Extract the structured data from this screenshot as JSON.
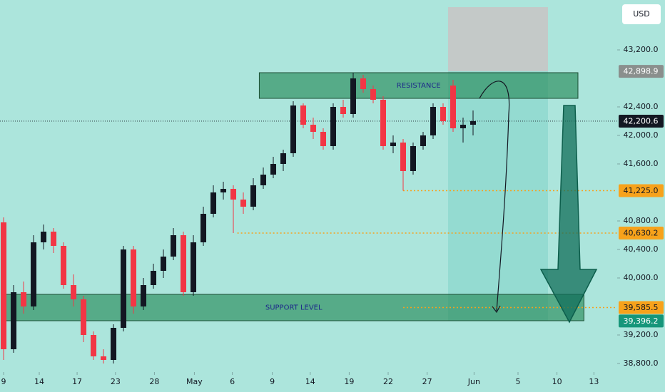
{
  "chart_data": {
    "type": "candlestick",
    "currency": "USD",
    "x": [
      0,
      1,
      2,
      3,
      4,
      5,
      6,
      7,
      8,
      9,
      10,
      11,
      12,
      13,
      14,
      15,
      16,
      17,
      18,
      19,
      20,
      21,
      22,
      23,
      24,
      25,
      26,
      27,
      28,
      29,
      30,
      31,
      32,
      33,
      34,
      35,
      36,
      37,
      38,
      39,
      40,
      41,
      42,
      43,
      44,
      45,
      46,
      47
    ],
    "open": [
      40780,
      39000,
      39800,
      39600,
      40500,
      40650,
      40450,
      39900,
      39700,
      39200,
      38900,
      38850,
      39300,
      40400,
      39600,
      39900,
      40100,
      40300,
      40600,
      39800,
      40500,
      40900,
      41200,
      41250,
      41100,
      41000,
      41300,
      41450,
      41600,
      41750,
      42420,
      42150,
      42050,
      41850,
      42400,
      42300,
      42800,
      42650,
      42500,
      41850,
      41900,
      41500,
      41850,
      42000,
      42400,
      42700,
      42100,
      42150
    ],
    "high": [
      40850,
      39900,
      39950,
      40600,
      40750,
      40700,
      40500,
      40050,
      39750,
      39250,
      39000,
      39350,
      40450,
      40450,
      40000,
      40200,
      40400,
      40700,
      40650,
      40600,
      41000,
      41300,
      41350,
      41300,
      41200,
      41400,
      41550,
      41700,
      41800,
      42480,
      42450,
      42250,
      42100,
      42450,
      42500,
      42880,
      42850,
      42700,
      42550,
      42000,
      41950,
      41900,
      42050,
      42450,
      42450,
      42780,
      42250,
      42350
    ],
    "low": [
      38850,
      38950,
      39500,
      39550,
      40400,
      40350,
      39850,
      39600,
      39100,
      38850,
      38800,
      38800,
      39250,
      39500,
      39550,
      39850,
      40000,
      40250,
      39750,
      39750,
      40450,
      40850,
      41100,
      40630.2,
      40900,
      40950,
      41250,
      41400,
      41500,
      41700,
      42100,
      41950,
      41800,
      41800,
      42250,
      42250,
      42600,
      42450,
      41800,
      41750,
      41225,
      41450,
      41800,
      41950,
      42150,
      42050,
      41900,
      42000
    ],
    "close": [
      39000,
      39800,
      39600,
      40500,
      40650,
      40450,
      39900,
      39700,
      39200,
      38900,
      38850,
      39300,
      40400,
      39600,
      39900,
      40100,
      40300,
      40600,
      39800,
      40500,
      40900,
      41200,
      41250,
      41100,
      41000,
      41300,
      41450,
      41600,
      41750,
      42420,
      42150,
      42050,
      41850,
      42400,
      42300,
      42800,
      42650,
      42500,
      41850,
      41900,
      41500,
      41850,
      42000,
      42400,
      42200,
      42100,
      42150,
      42200.6
    ],
    "up_color": "#131722",
    "down_color": "#f23645",
    "xlim": [
      -0.36,
      61.43
    ],
    "xticks": [
      {
        "value": 0,
        "label": "9"
      },
      {
        "value": 3.57,
        "label": "14"
      },
      {
        "value": 7.36,
        "label": "17"
      },
      {
        "value": 11.2,
        "label": "23"
      },
      {
        "value": 15.1,
        "label": "28"
      },
      {
        "value": 19.1,
        "label": "May"
      },
      {
        "value": 22.9,
        "label": "6"
      },
      {
        "value": 26.9,
        "label": "9"
      },
      {
        "value": 30.7,
        "label": "14"
      },
      {
        "value": 34.6,
        "label": "19"
      },
      {
        "value": 38.5,
        "label": "22"
      },
      {
        "value": 42.4,
        "label": "27"
      },
      {
        "value": 47.1,
        "label": "Jun"
      },
      {
        "value": 51.5,
        "label": "5"
      },
      {
        "value": 55.4,
        "label": "10"
      },
      {
        "value": 59.1,
        "label": "13"
      }
    ],
    "ylim": [
      38400,
      43900
    ],
    "yticks": [
      {
        "value": 43200,
        "label": "43,200.0"
      },
      {
        "value": 42400,
        "label": "42,400.0"
      },
      {
        "value": 42000,
        "label": "42,000.0"
      },
      {
        "value": 41600,
        "label": "41,600.0"
      },
      {
        "value": 40800,
        "label": "40,800.0"
      },
      {
        "value": 40400,
        "label": "40,400.0"
      },
      {
        "value": 40000,
        "label": "40,000.0"
      },
      {
        "value": 39200,
        "label": "39,200.0"
      },
      {
        "value": 38800,
        "label": "38,800.0"
      }
    ],
    "zones": [
      {
        "label": "RESISTANCE",
        "x": [
          25.6,
          57.5
        ],
        "y": [
          42520,
          42880
        ]
      },
      {
        "label": "SUPPORT LEVEL",
        "x": [
          0,
          58.1
        ],
        "y": [
          39400,
          39770
        ]
      }
    ],
    "position": {
      "x": [
        44.5,
        54.5
      ],
      "top": 43800,
      "entry": {
        "value": 42898.9,
        "label": "42,898.9"
      },
      "target": {
        "value": 39396.2,
        "label": "39,396.2"
      }
    },
    "current_price": {
      "value": 42200.6,
      "label": "42,200.6"
    },
    "price_lines": [
      {
        "value": 41225,
        "label": "41,225.0",
        "x_start": 40
      },
      {
        "value": 40630.2,
        "label": "40,630.2",
        "x_start": 23.4
      },
      {
        "value": 39585.5,
        "label": "39,585.5",
        "x_start": 40
      }
    ],
    "price_line_color": "#f7a21b"
  }
}
